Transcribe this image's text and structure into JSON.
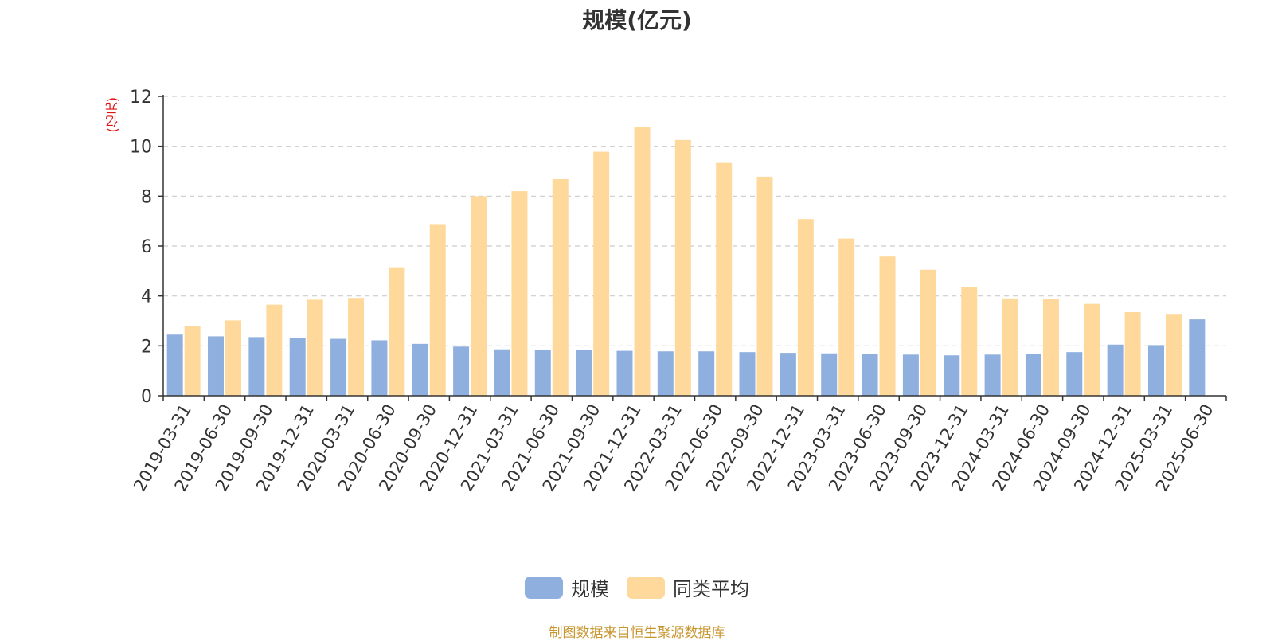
{
  "chart_data": {
    "type": "bar",
    "title": "规模(亿元)",
    "ylabel": "(亿元)",
    "xlabel": "",
    "ylim": [
      0,
      12
    ],
    "yticks": [
      0,
      2,
      4,
      6,
      8,
      10,
      12
    ],
    "grid": true,
    "legend_position": "bottom-center",
    "categories": [
      "2019-03-31",
      "2019-06-30",
      "2019-09-30",
      "2019-12-31",
      "2020-03-31",
      "2020-06-30",
      "2020-09-30",
      "2020-12-31",
      "2021-03-31",
      "2021-06-30",
      "2021-09-30",
      "2021-12-31",
      "2022-03-31",
      "2022-06-30",
      "2022-09-30",
      "2022-12-31",
      "2023-03-31",
      "2023-06-30",
      "2023-09-30",
      "2023-12-31",
      "2024-03-31",
      "2024-06-30",
      "2024-09-30",
      "2024-12-31",
      "2025-03-31",
      "2025-06-30"
    ],
    "series": [
      {
        "name": "规模",
        "color": "#8fb0de",
        "values": [
          2.45,
          2.38,
          2.35,
          2.3,
          2.28,
          2.22,
          2.08,
          1.97,
          1.86,
          1.85,
          1.82,
          1.8,
          1.78,
          1.78,
          1.75,
          1.72,
          1.7,
          1.68,
          1.65,
          1.62,
          1.65,
          1.68,
          1.75,
          2.05,
          2.03,
          3.06
        ]
      },
      {
        "name": "同类平均",
        "color": "#ffd99b",
        "values": [
          2.78,
          3.02,
          3.65,
          3.85,
          3.92,
          5.15,
          6.88,
          8.0,
          8.2,
          8.68,
          9.78,
          10.78,
          10.25,
          9.33,
          8.78,
          7.08,
          6.3,
          5.58,
          5.05,
          4.35,
          3.9,
          3.88,
          3.68,
          3.35,
          3.28,
          null
        ]
      }
    ]
  },
  "source_note": "制图数据来自恒生聚源数据库",
  "colors": {
    "axis": "#333333",
    "grid": "#cccccc",
    "unit_label": "#e01010",
    "source_note": "#c8962e"
  }
}
